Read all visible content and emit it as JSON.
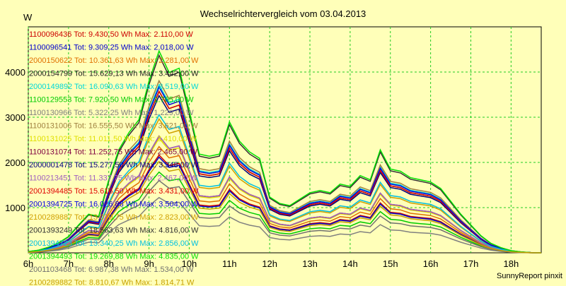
{
  "chart_data": {
    "type": "line",
    "title": "Wechselrichtervergleich vom 03.04.2013",
    "ylabel": "W",
    "xlabel": "",
    "footer": "SunnyReport pinxit",
    "x_range": [
      "6h",
      "18h45"
    ],
    "ylim": [
      0,
      5000
    ],
    "yticks": [
      1000,
      2000,
      3000,
      4000
    ],
    "xticks": [
      "6h",
      "7h",
      "8h",
      "9h",
      "10h",
      "11h",
      "12h",
      "13h",
      "14h",
      "15h",
      "16h",
      "17h",
      "18h"
    ],
    "grid": true,
    "legend_placement": "top-left inside plot",
    "times": [
      "6:00",
      "6:15",
      "6:30",
      "6:45",
      "7:00",
      "7:15",
      "7:30",
      "7:45",
      "8:00",
      "8:15",
      "8:30",
      "8:45",
      "9:00",
      "9:15",
      "9:30",
      "9:45",
      "10:00",
      "10:15",
      "10:30",
      "10:45",
      "11:00",
      "11:15",
      "11:30",
      "11:45",
      "12:00",
      "12:15",
      "12:30",
      "12:45",
      "13:00",
      "13:15",
      "13:30",
      "13:45",
      "14:00",
      "14:15",
      "14:30",
      "14:45",
      "15:00",
      "15:15",
      "15:30",
      "15:45",
      "16:00",
      "16:15",
      "16:30",
      "16:45",
      "17:00",
      "17:15",
      "17:30",
      "17:45",
      "18:00",
      "18:15",
      "18:30",
      "18:45"
    ],
    "series": [
      {
        "name": "1100096436 Tot: 9.430,50 Wh Max: 2.110,00 W",
        "color": "#cc0000",
        "scale": 0.46
      },
      {
        "name": "1100096541 Tot: 9.309,25 Wh Max: 2.018,00 W",
        "color": "#0000cc",
        "scale": 0.45
      },
      {
        "name": "2000150622 Tot: 10.361,63 Wh Max: 2.281,00 W",
        "color": "#e07000",
        "scale": 0.5
      },
      {
        "name": "2000154799 Tot: 15.629,13 Wh Max: 3.442,00 W",
        "color": "#202020",
        "scale": 0.76
      },
      {
        "name": "2000149892 Tot: 16.090,63 Wh Max: 3.519,00 W",
        "color": "#00d8d8",
        "scale": 0.79
      },
      {
        "name": "1100129553 Tot: 7.920,50 Wh Max: 1.765,00 W",
        "color": "#00cc00",
        "scale": 0.38
      },
      {
        "name": "1100130966 Tot: 5.322,25 Wh Max: 1.229,00 W",
        "color": "#808080",
        "scale": 0.26
      },
      {
        "name": "1100131006 Tot: 16.555,50 Wh Max: 3.621,00 W",
        "color": "#a08040",
        "scale": 0.81
      },
      {
        "name": "1100131025 Tot: 11.011,50 Wh Max: 2.410,00 W",
        "color": "#e0e000",
        "scale": 0.54
      },
      {
        "name": "1100131074 Tot: 11.252,75 Wh Max: 2.465,00 W",
        "color": "#800040",
        "scale": 0.55
      },
      {
        "name": "2000001478 Tot: 15.277,50 Wh Max: 3.348,00 W",
        "color": "#000080",
        "scale": 0.74
      },
      {
        "name": "1100213451 Tot: 11.337,75 Wh Max: 2.467,00 W",
        "color": "#a060c0",
        "scale": 0.55
      },
      {
        "name": "2001394485 Tot: 15.616,50 Wh Max: 3.431,00 W",
        "color": "#e00000",
        "scale": 0.76
      },
      {
        "name": "2001394725 Tot: 16.026,88 Wh Max: 3.504,00 W",
        "color": "#0000e0",
        "scale": 0.78
      },
      {
        "name": "2100289887 Tot: 13.070,75 Wh Max: 2.823,00 W",
        "color": "#d0a000",
        "scale": 0.63
      },
      {
        "name": "2001393249 Tot: 18.563,63 Wh Max: 4.816,00 W",
        "color": "#303030",
        "scale": 0.93
      },
      {
        "name": "2001394723 Tot: 13.340,25 Wh Max: 2.856,00 W",
        "color": "#00c0e0",
        "scale": 0.65
      },
      {
        "name": "2001394493 Tot: 19.269,88 Wh Max: 4.835,00 W",
        "color": "#00e000",
        "scale": 0.95
      },
      {
        "name": "2001103468 Tot: 6.987,38 Wh Max: 1.534,00 W",
        "color": "#707070",
        "scale": 0.34
      },
      {
        "name": "2100289882 Tot: 8.810,67 Wh Max: 1.814,71 W",
        "color": "#c8a000",
        "scale": 0.43
      }
    ],
    "shape": [
      30,
      60,
      130,
      230,
      380,
      650,
      900,
      850,
      1700,
      2400,
      2800,
      3100,
      4000,
      4700,
      4200,
      4300,
      3300,
      2300,
      2250,
      2300,
      3050,
      2600,
      2350,
      2200,
      1300,
      1150,
      1100,
      1250,
      1400,
      1450,
      1400,
      1600,
      1550,
      1800,
      1700,
      2400,
      1950,
      1900,
      1750,
      1700,
      1650,
      1500,
      1200,
      900,
      650,
      400,
      220,
      120,
      50,
      20,
      5,
      0
    ]
  }
}
